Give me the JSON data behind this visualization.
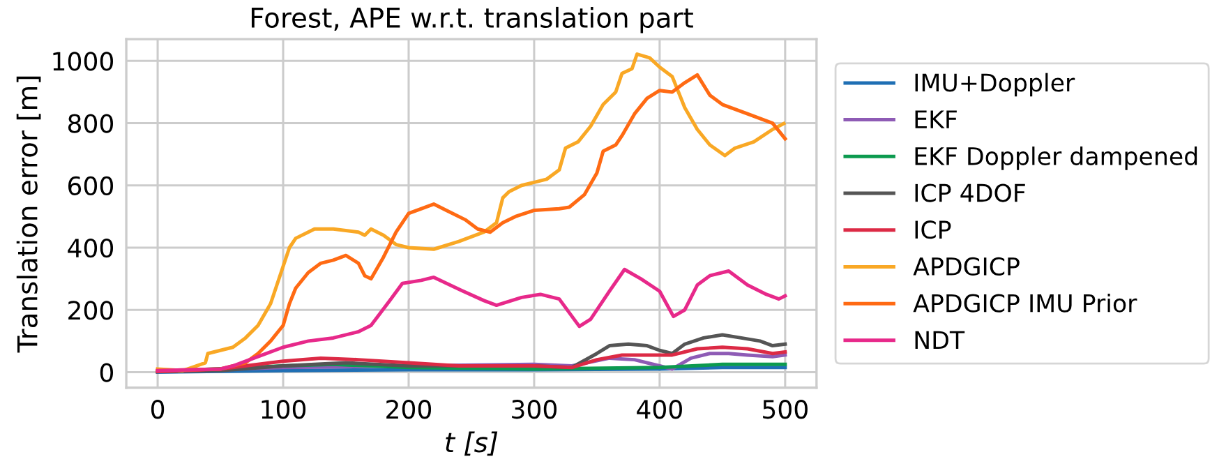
{
  "chart_data": {
    "type": "line",
    "title": "Forest, APE w.r.t. translation part",
    "xlabel": "t [s]",
    "ylabel": "Translation error [m]",
    "xlim": [
      -25,
      525
    ],
    "ylim": [
      -50,
      1070
    ],
    "xticks": [
      0,
      100,
      200,
      300,
      400,
      500
    ],
    "yticks": [
      0,
      200,
      400,
      600,
      800,
      1000
    ],
    "grid": true,
    "legend": "right",
    "marker": "none",
    "line_style": "solid",
    "series": [
      {
        "name": "IMU+Doppler",
        "color": "#1f6fb4",
        "x": [
          0,
          100,
          200,
          300,
          400,
          450,
          500
        ],
        "values": [
          0,
          5,
          8,
          8,
          10,
          15,
          15
        ]
      },
      {
        "name": "EKF",
        "color": "#8e5bb5",
        "x": [
          0,
          100,
          200,
          300,
          330,
          360,
          380,
          400,
          410,
          425,
          440,
          455,
          470,
          490,
          500
        ],
        "values": [
          2,
          15,
          20,
          25,
          20,
          45,
          40,
          20,
          10,
          45,
          60,
          60,
          55,
          50,
          55
        ]
      },
      {
        "name": "EKF Doppler dampened",
        "color": "#0c9a4f",
        "x": [
          0,
          100,
          140,
          200,
          300,
          400,
          450,
          500
        ],
        "values": [
          2,
          20,
          25,
          15,
          10,
          15,
          25,
          25
        ]
      },
      {
        "name": "ICP 4DOF",
        "color": "#555555",
        "x": [
          0,
          50,
          100,
          150,
          200,
          250,
          300,
          330,
          350,
          360,
          375,
          390,
          400,
          410,
          420,
          435,
          450,
          465,
          480,
          490,
          500
        ],
        "values": [
          2,
          5,
          20,
          30,
          20,
          20,
          20,
          15,
          60,
          85,
          90,
          85,
          70,
          60,
          90,
          110,
          120,
          110,
          100,
          85,
          90
        ]
      },
      {
        "name": "ICP",
        "color": "#dc2a45",
        "x": [
          0,
          50,
          100,
          130,
          160,
          200,
          240,
          300,
          330,
          350,
          370,
          390,
          410,
          430,
          450,
          470,
          490,
          500
        ],
        "values": [
          2,
          10,
          35,
          45,
          40,
          30,
          20,
          20,
          15,
          40,
          55,
          55,
          55,
          75,
          80,
          75,
          60,
          65
        ]
      },
      {
        "name": "APDGICP",
        "color": "#f9a825",
        "x": [
          0,
          20,
          38,
          40,
          50,
          60,
          70,
          80,
          90,
          95,
          100,
          105,
          110,
          120,
          125,
          140,
          160,
          165,
          170,
          180,
          190,
          200,
          220,
          240,
          260,
          270,
          275,
          280,
          290,
          300,
          310,
          320,
          325,
          335,
          345,
          355,
          365,
          370,
          378,
          382,
          392,
          400,
          410,
          420,
          430,
          440,
          452,
          460,
          475,
          490,
          499
        ],
        "values": [
          10,
          5,
          30,
          60,
          70,
          80,
          110,
          150,
          220,
          280,
          340,
          400,
          430,
          450,
          460,
          460,
          450,
          440,
          460,
          440,
          410,
          400,
          395,
          420,
          450,
          480,
          560,
          580,
          600,
          610,
          620,
          650,
          720,
          740,
          790,
          860,
          900,
          960,
          975,
          1022,
          1010,
          980,
          950,
          850,
          780,
          730,
          696,
          720,
          740,
          780,
          799
        ]
      },
      {
        "name": "APDGICP IMU Prior",
        "color": "#ff6a13",
        "x": [
          0,
          50,
          70,
          80,
          90,
          100,
          105,
          110,
          120,
          130,
          140,
          150,
          160,
          165,
          170,
          180,
          190,
          200,
          220,
          230,
          245,
          255,
          265,
          275,
          285,
          300,
          320,
          328,
          340,
          350,
          355,
          365,
          370,
          380,
          390,
          400,
          410,
          420,
          430,
          440,
          450,
          470,
          490,
          500
        ],
        "values": [
          5,
          10,
          30,
          60,
          100,
          150,
          220,
          270,
          320,
          350,
          360,
          375,
          350,
          310,
          300,
          370,
          450,
          510,
          540,
          520,
          490,
          460,
          450,
          480,
          500,
          520,
          525,
          530,
          570,
          640,
          710,
          730,
          760,
          830,
          880,
          905,
          900,
          930,
          955,
          890,
          860,
          830,
          800,
          750
        ]
      },
      {
        "name": "NDT",
        "color": "#e7298a",
        "x": [
          0,
          50,
          60,
          80,
          100,
          120,
          140,
          160,
          170,
          185,
          195,
          210,
          220,
          242,
          260,
          270,
          290,
          305,
          320,
          336,
          345,
          360,
          372,
          385,
          400,
          411,
          420,
          430,
          440,
          455,
          470,
          485,
          495,
          500
        ],
        "values": [
          5,
          10,
          20,
          50,
          80,
          100,
          110,
          130,
          150,
          230,
          285,
          295,
          305,
          263,
          230,
          215,
          240,
          250,
          235,
          147,
          170,
          260,
          330,
          300,
          260,
          179,
          200,
          280,
          310,
          325,
          280,
          250,
          235,
          245
        ]
      }
    ]
  }
}
